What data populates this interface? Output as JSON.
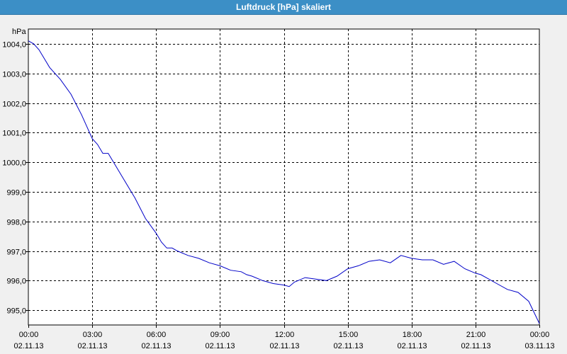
{
  "window": {
    "title": "Luftdruck [hPa] skaliert"
  },
  "chart_data": {
    "type": "line",
    "title": "Luftdruck [hPa] skaliert",
    "ylabel": "hPa",
    "xlabel": "",
    "ylim": [
      994.5,
      1004.5
    ],
    "xlim": [
      0,
      24
    ],
    "grid": true,
    "line_color": "#0000c8",
    "y_ticks": [
      {
        "value": 1004,
        "label": "1004,0"
      },
      {
        "value": 1003,
        "label": "1003,0"
      },
      {
        "value": 1002,
        "label": "1002,0"
      },
      {
        "value": 1001,
        "label": "1001,0"
      },
      {
        "value": 1000,
        "label": "1000,0"
      },
      {
        "value": 999,
        "label": "999,0"
      },
      {
        "value": 998,
        "label": "998,0"
      },
      {
        "value": 997,
        "label": "997,0"
      },
      {
        "value": 996,
        "label": "996,0"
      },
      {
        "value": 995,
        "label": "995,0"
      }
    ],
    "x_ticks": [
      {
        "value": 0,
        "time": "00:00",
        "date": "02.11.13"
      },
      {
        "value": 3,
        "time": "03:00",
        "date": "02.11.13"
      },
      {
        "value": 6,
        "time": "06:00",
        "date": "02.11.13"
      },
      {
        "value": 9,
        "time": "09:00",
        "date": "02.11.13"
      },
      {
        "value": 12,
        "time": "12:00",
        "date": "02.11.13"
      },
      {
        "value": 15,
        "time": "15:00",
        "date": "02.11.13"
      },
      {
        "value": 18,
        "time": "18:00",
        "date": "02.11.13"
      },
      {
        "value": 21,
        "time": "21:00",
        "date": "02.11.13"
      },
      {
        "value": 24,
        "time": "00:00",
        "date": "03.11.13"
      }
    ],
    "series": [
      {
        "x": [
          0.0,
          0.25,
          0.5,
          0.75,
          1.0,
          1.5,
          2.0,
          2.5,
          2.75,
          3.0,
          3.25,
          3.5,
          3.75,
          4.0,
          4.5,
          5.0,
          5.5,
          6.0,
          6.25,
          6.5,
          6.75,
          7.0,
          7.5,
          8.0,
          8.5,
          9.0,
          9.5,
          10.0,
          10.25,
          10.5,
          11.0,
          11.25,
          11.5,
          12.0,
          12.25,
          12.5,
          13.0,
          13.5,
          14.0,
          14.5,
          15.0,
          15.5,
          16.0,
          16.5,
          17.0,
          17.5,
          18.0,
          18.5,
          19.0,
          19.5,
          20.0,
          20.5,
          21.0,
          21.25,
          21.5,
          22.0,
          22.5,
          23.0,
          23.5,
          24.0
        ],
        "y": [
          1004.1,
          1004.0,
          1003.8,
          1003.5,
          1003.2,
          1002.8,
          1002.3,
          1001.6,
          1001.2,
          1000.8,
          1000.6,
          1000.3,
          1000.3,
          1000.0,
          999.4,
          998.8,
          998.1,
          997.6,
          997.3,
          997.1,
          997.1,
          997.0,
          996.85,
          996.75,
          996.6,
          996.5,
          996.35,
          996.3,
          996.2,
          996.15,
          996.0,
          995.95,
          995.9,
          995.85,
          995.8,
          995.95,
          996.1,
          996.05,
          996.0,
          996.15,
          996.4,
          996.5,
          996.65,
          996.7,
          996.6,
          996.85,
          996.75,
          996.7,
          996.7,
          996.55,
          996.65,
          996.4,
          996.25,
          996.2,
          996.1,
          995.9,
          995.7,
          995.6,
          995.3,
          994.55
        ]
      }
    ]
  }
}
